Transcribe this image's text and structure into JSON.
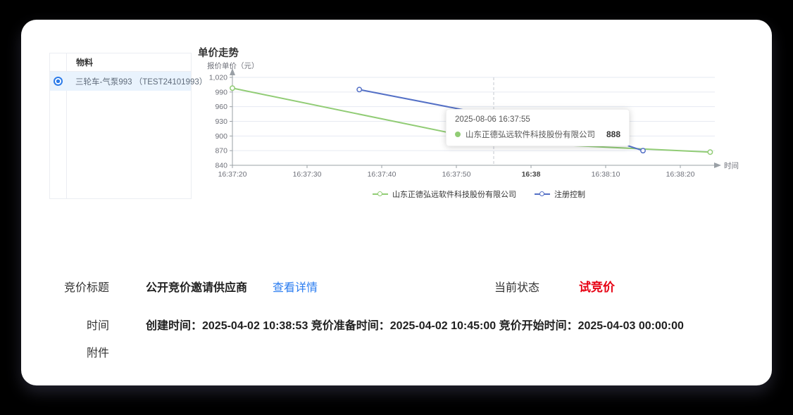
{
  "materials_panel": {
    "header": "物料",
    "rows": [
      {
        "label": "三轮车-气泵993 （TEST24101993）",
        "selected": true
      }
    ]
  },
  "chart_data": {
    "type": "line",
    "title": "单价走势",
    "y_axis_name": "报价单价（元）",
    "x_axis_name": "时间",
    "ylim": [
      840,
      1020
    ],
    "y_ticks": [
      840,
      870,
      900,
      930,
      960,
      990,
      1020
    ],
    "x_ticks": [
      {
        "label": "16:37:20",
        "t": 0
      },
      {
        "label": "16:37:30",
        "t": 10
      },
      {
        "label": "16:37:40",
        "t": 20
      },
      {
        "label": "16:37:50",
        "t": 30
      },
      {
        "label": "16:38",
        "t": 40,
        "bold": true
      },
      {
        "label": "16:38:10",
        "t": 50
      },
      {
        "label": "16:38:20",
        "t": 60
      }
    ],
    "x_start_time": "16:37:20",
    "series": [
      {
        "name": "山东正德弘远软件科技股份有限公司",
        "color": "#91cc75",
        "points": [
          {
            "t": 0,
            "v": 998
          },
          {
            "t": 35,
            "v": 888
          },
          {
            "t": 64,
            "v": 867
          }
        ]
      },
      {
        "name": "注册控制",
        "color": "#5470c6",
        "points": [
          {
            "t": 17,
            "v": 995
          },
          {
            "t": 49,
            "v": 900
          },
          {
            "t": 55,
            "v": 870
          }
        ]
      }
    ],
    "tooltip": {
      "timestamp": "2025-08-06 16:37:55",
      "series_name": "山东正德弘远软件科技股份有限公司",
      "value": "888",
      "t": 35
    },
    "axis_pointer_t": 35,
    "grid_color": "#e6eaf2",
    "axis_color": "#9aa0a6",
    "label_color": "#6e7079",
    "bold_label_color": "#464646"
  },
  "info": {
    "bid_title_label": "竞价标题",
    "bid_title_value": "公开竞价邀请供应商",
    "view_details_link": "查看详情",
    "link_color": "#2a7cf0",
    "status_label": "当前状态",
    "status_value": "试竞价",
    "status_color": "#e60012",
    "time_label": "时间",
    "time_value": "创建时间：2025-04-02 10:38:53 竞价准备时间：2025-04-02 10:45:00 竞价开始时间：2025-04-03 00:00:00",
    "attachment_label": "附件"
  }
}
